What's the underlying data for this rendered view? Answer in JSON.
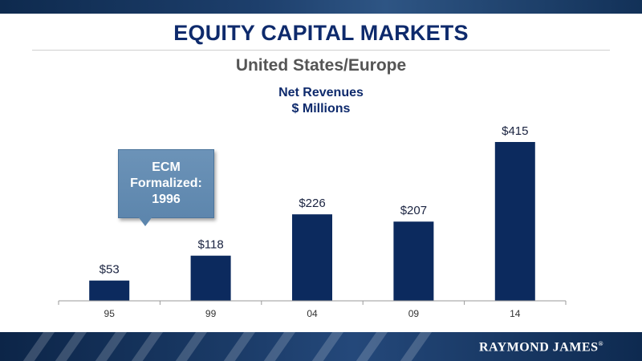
{
  "header": {
    "title": "EQUITY CAPITAL MARKETS",
    "subtitle": "United States/Europe"
  },
  "callout": {
    "lines": [
      "ECM",
      "Formalized:",
      "1996"
    ]
  },
  "footer": {
    "logo_text": "RAYMOND JAMES",
    "logo_mark": "®"
  },
  "colors": {
    "bar": "#0c2a5e",
    "title": "#0e2a6c",
    "subtitle": "#555555",
    "callout": "#5d86ad"
  },
  "chart_data": {
    "type": "bar",
    "title": "Net Revenues",
    "subtitle": "$ Millions",
    "categories": [
      "95",
      "99",
      "04",
      "09",
      "14"
    ],
    "values": [
      53,
      118,
      226,
      207,
      415
    ],
    "data_labels": [
      "$53",
      "$118",
      "$226",
      "$207",
      "$415"
    ],
    "xlabel": "",
    "ylabel": "",
    "ylim": [
      0,
      415
    ],
    "grid": false,
    "legend": "none"
  }
}
